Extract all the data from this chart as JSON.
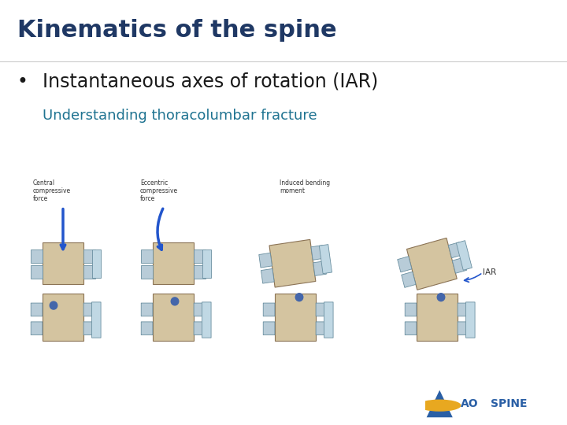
{
  "title": "Kinematics of the spine",
  "title_color": "#1f3864",
  "title_fontsize": 22,
  "title_bold": true,
  "bullet_text": "Instantaneous axes of rotation (IAR)",
  "bullet_color": "#1a1a1a",
  "bullet_fontsize": 17,
  "subtitle_text": "Understanding thoracolumbar fracture",
  "subtitle_color": "#1f7391",
  "subtitle_fontsize": 13,
  "bg_color": "#ffffff",
  "divider_color": "#cccccc",
  "aospine_color": "#1f3864",
  "logo_triangle_color": "#2a5fa5",
  "logo_circle_color": "#e8a820",
  "bone_color": "#d4c4a0",
  "bone_edge": "#8B7355",
  "process_color": "#b8ccd8",
  "process_edge": "#6a8fa0",
  "arrow_color": "#2255cc",
  "dot_color": "#4466aa",
  "label_color": "#333333",
  "figsize": [
    7.2,
    5.4
  ],
  "dpi": 100
}
